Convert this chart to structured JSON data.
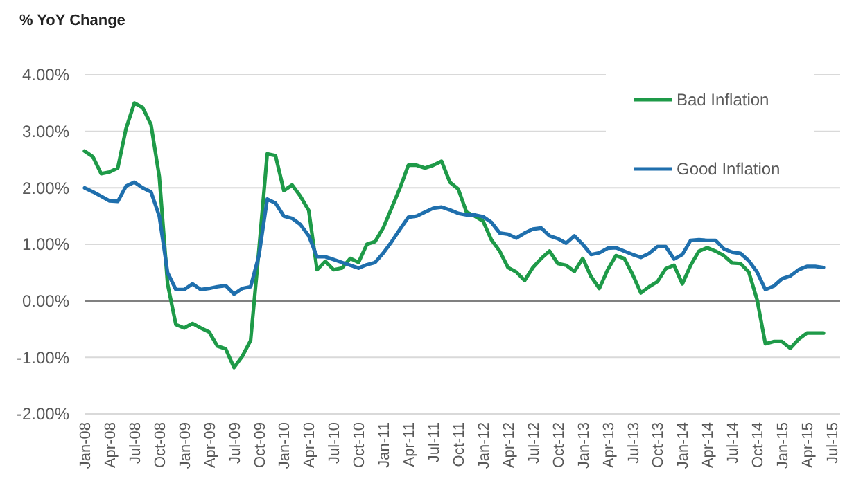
{
  "chart_data": {
    "type": "line",
    "ylabel": "% YoY Change",
    "categories": [
      "Jan-08",
      null,
      null,
      "Apr-08",
      null,
      null,
      "Jul-08",
      null,
      null,
      "Oct-08",
      null,
      null,
      "Jan-09",
      null,
      null,
      "Apr-09",
      null,
      null,
      "Jul-09",
      null,
      null,
      "Oct-09",
      null,
      null,
      "Jan-10",
      null,
      null,
      "Apr-10",
      null,
      null,
      "Jul-10",
      null,
      null,
      "Oct-10",
      null,
      null,
      "Jan-11",
      null,
      null,
      "Apr-11",
      null,
      null,
      "Jul-11",
      null,
      null,
      "Oct-11",
      null,
      null,
      "Jan-12",
      null,
      null,
      "Apr-12",
      null,
      null,
      "Jul-12",
      null,
      null,
      "Oct-12",
      null,
      null,
      "Jan-13",
      null,
      null,
      "Apr-13",
      null,
      null,
      "Jul-13",
      null,
      null,
      "Oct-13",
      null,
      null,
      "Jan-14",
      null,
      null,
      "Apr-14",
      null,
      null,
      "Jul-14",
      null,
      null,
      "Oct-14",
      null,
      null,
      "Jan-15",
      null,
      null,
      "Apr-15",
      null,
      null,
      "Jul-15"
    ],
    "series": [
      {
        "name": "Bad Inflation",
        "color": "#1e9a48",
        "values": [
          2.65,
          2.55,
          2.25,
          2.28,
          2.35,
          3.05,
          3.5,
          3.42,
          3.12,
          2.2,
          0.3,
          -0.42,
          -0.48,
          -0.4,
          -0.48,
          -0.55,
          -0.8,
          -0.85,
          -1.18,
          -0.98,
          -0.7,
          0.9,
          2.6,
          2.57,
          1.95,
          2.05,
          1.85,
          1.6,
          0.55,
          0.7,
          0.55,
          0.58,
          0.75,
          0.68,
          1.0,
          1.05,
          1.3,
          1.65,
          2.0,
          2.4,
          2.4,
          2.35,
          2.4,
          2.47,
          2.1,
          1.98,
          1.57,
          1.5,
          1.41,
          1.08,
          0.88,
          0.59,
          0.51,
          0.36,
          0.59,
          0.75,
          0.88,
          0.66,
          0.63,
          0.52,
          0.75,
          0.43,
          0.22,
          0.55,
          0.8,
          0.75,
          0.47,
          0.14,
          0.25,
          0.34,
          0.57,
          0.63,
          0.3,
          0.63,
          0.88,
          0.94,
          0.88,
          0.8,
          0.67,
          0.66,
          0.51,
          0.02,
          -0.76,
          -0.72,
          -0.72,
          -0.84,
          -0.68,
          -0.57,
          -0.57,
          -0.57,
          null
        ]
      },
      {
        "name": "Good Inflation",
        "color": "#1f6fad",
        "values": [
          2.0,
          1.93,
          1.85,
          1.77,
          1.76,
          2.03,
          2.1,
          2.0,
          1.93,
          1.5,
          0.5,
          0.2,
          0.2,
          0.3,
          0.2,
          0.22,
          0.25,
          0.27,
          0.12,
          0.22,
          0.25,
          0.8,
          1.8,
          1.73,
          1.5,
          1.46,
          1.35,
          1.15,
          0.78,
          0.78,
          0.73,
          0.68,
          0.63,
          0.58,
          0.64,
          0.68,
          0.85,
          1.05,
          1.27,
          1.48,
          1.5,
          1.57,
          1.64,
          1.66,
          1.61,
          1.55,
          1.52,
          1.52,
          1.49,
          1.39,
          1.2,
          1.18,
          1.11,
          1.2,
          1.27,
          1.29,
          1.15,
          1.1,
          1.02,
          1.15,
          1.0,
          0.82,
          0.85,
          0.93,
          0.94,
          0.88,
          0.82,
          0.77,
          0.84,
          0.96,
          0.96,
          0.74,
          0.82,
          1.07,
          1.08,
          1.07,
          1.07,
          0.92,
          0.86,
          0.84,
          0.71,
          0.51,
          0.2,
          0.26,
          0.39,
          0.44,
          0.55,
          0.61,
          0.61,
          0.59,
          null
        ]
      }
    ],
    "ylim": [
      -2,
      4
    ],
    "yticks": [
      {
        "value": -2,
        "label": "-2.00%"
      },
      {
        "value": -1,
        "label": "-1.00%"
      },
      {
        "value": 0,
        "label": "0.00%"
      },
      {
        "value": 1,
        "label": "1.00%"
      },
      {
        "value": 2,
        "label": "2.00%"
      },
      {
        "value": 3,
        "label": "3.00%"
      },
      {
        "value": 4,
        "label": "4.00%"
      }
    ],
    "grid": "y",
    "legend": "top right",
    "marker": "none",
    "line_style": "solid"
  }
}
